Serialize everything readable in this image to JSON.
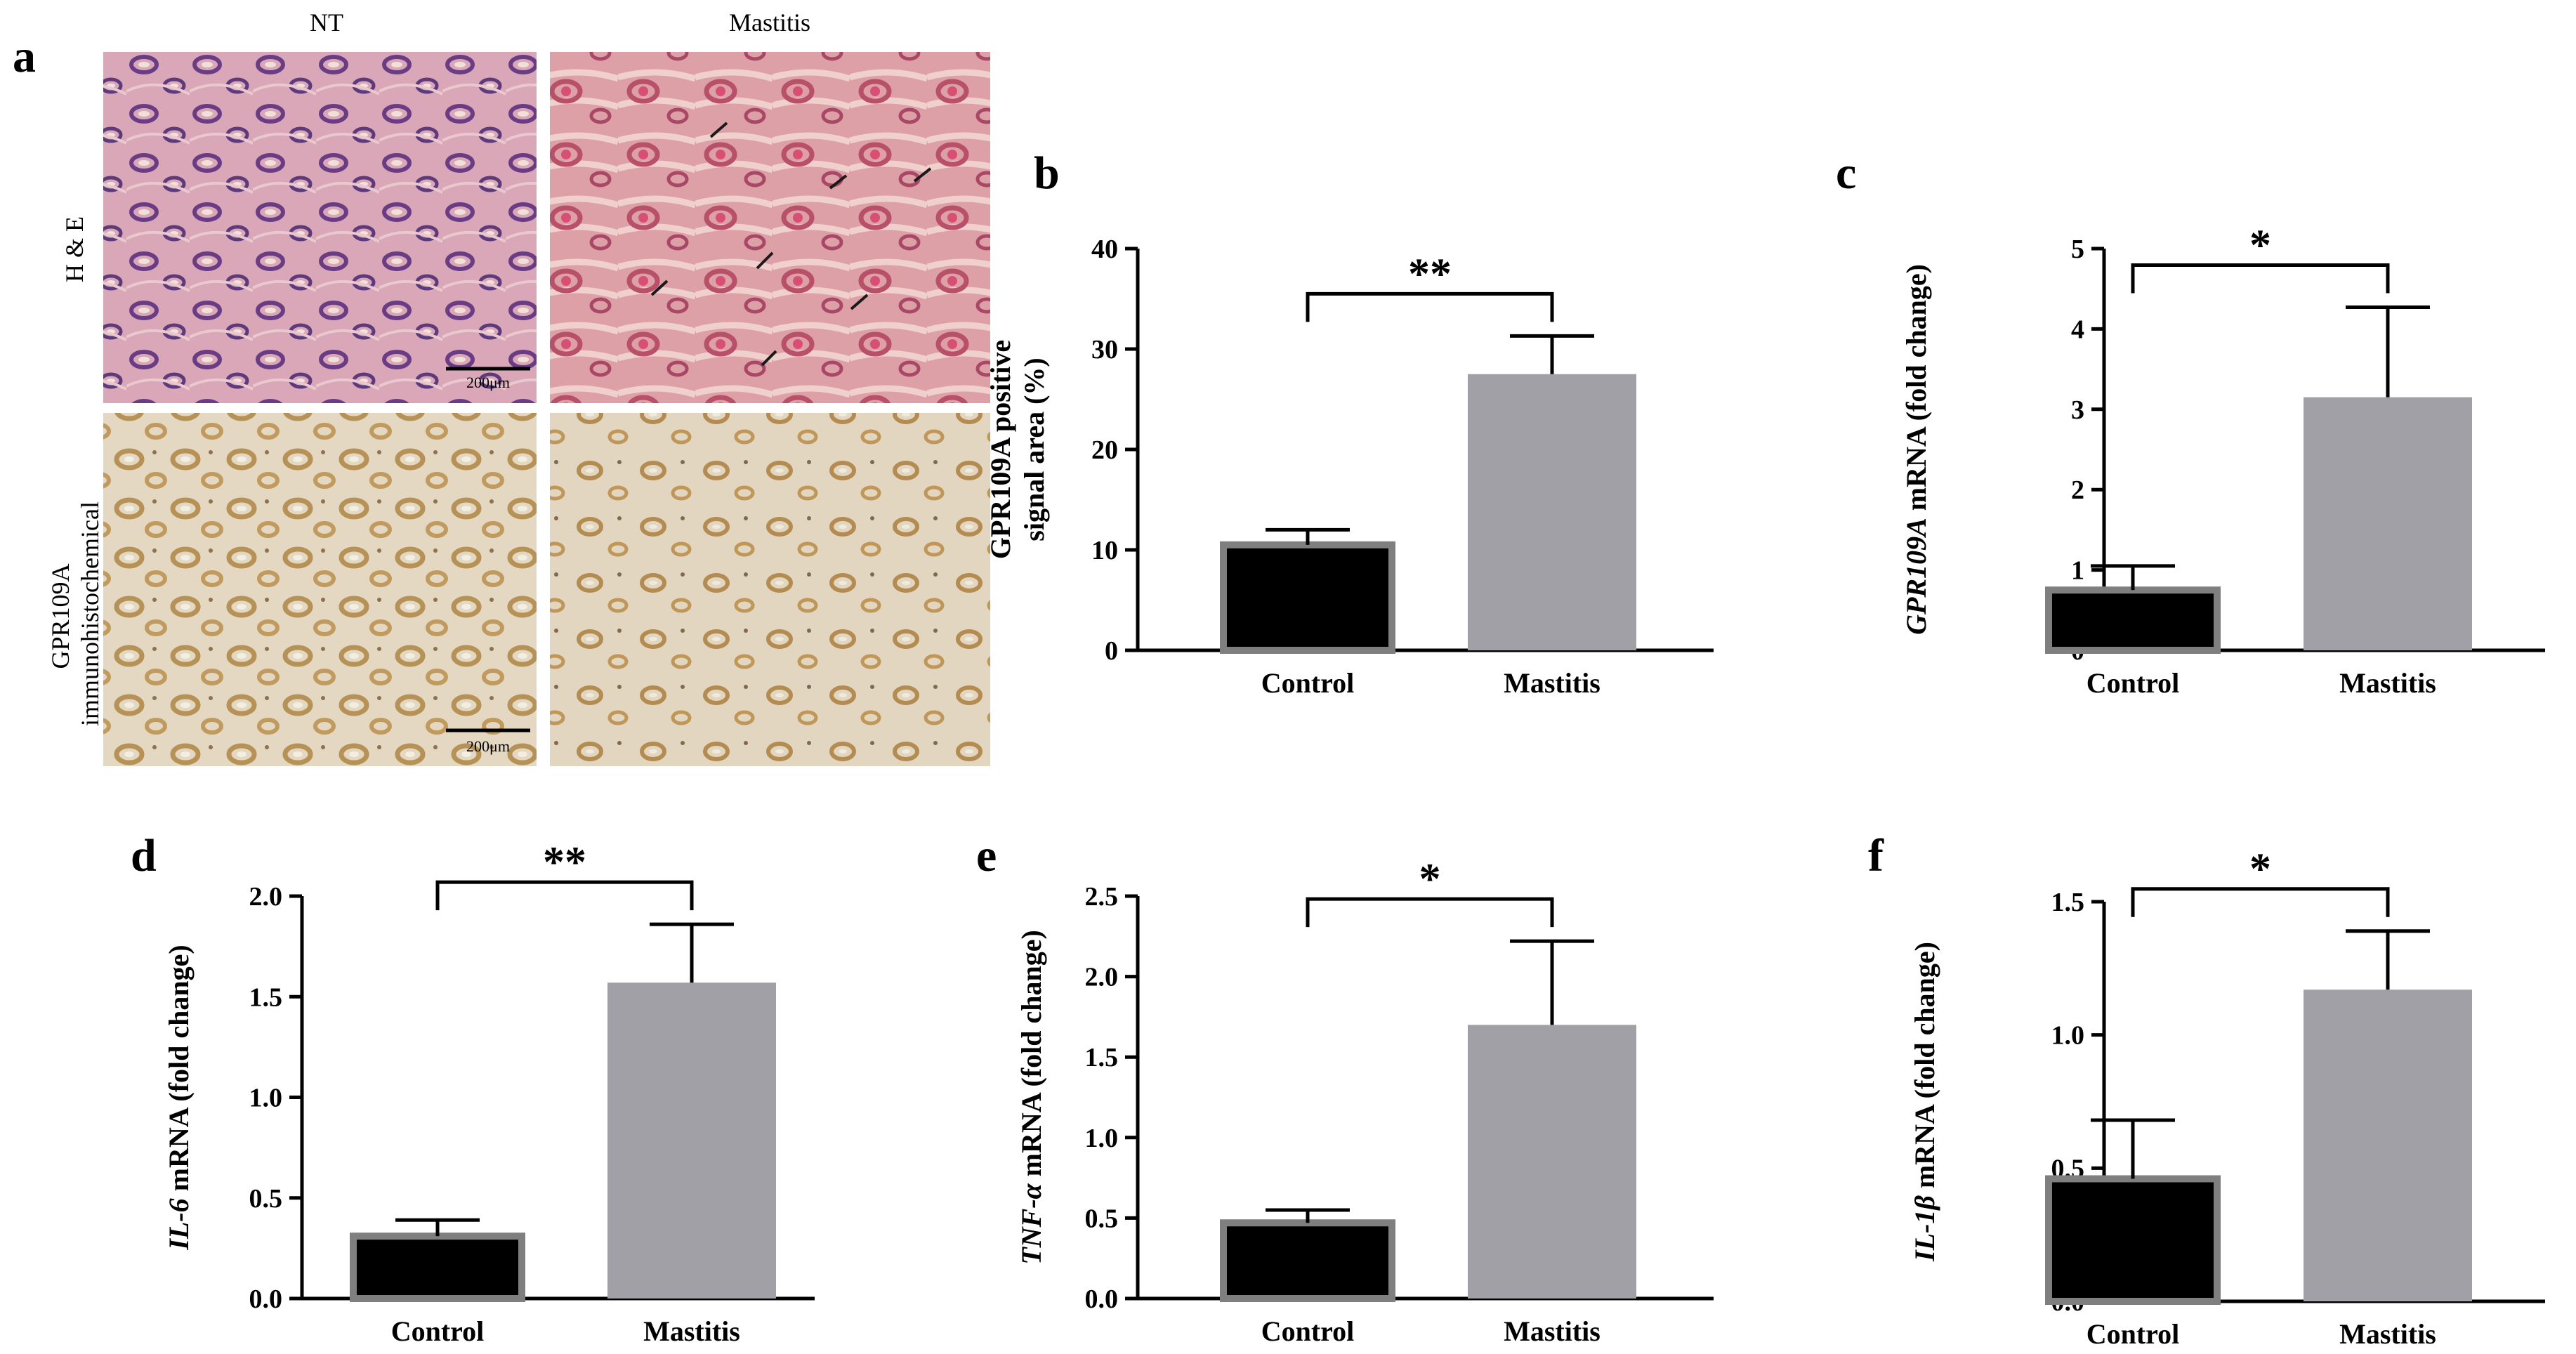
{
  "panel_a": {
    "label": "a",
    "columns": [
      "NT",
      "Mastitis"
    ],
    "rows": [
      "H & E",
      "GPR109A immunohistochemical"
    ],
    "row_lines": [
      [
        "H & E"
      ],
      [
        "GPR109A",
        "immunohistochemical"
      ]
    ],
    "scale_bars": [
      "200μm",
      "200μm"
    ]
  },
  "colors": {
    "control": "#000000",
    "control_edge": "#7f7f7f",
    "mastitis": "#a0a0a6",
    "axis": "#000000"
  },
  "chart_data": [
    {
      "panel": "b",
      "type": "bar",
      "categories": [
        "Control",
        "Mastitis"
      ],
      "values": [
        10.5,
        27.5
      ],
      "errors": [
        1.5,
        3.8
      ],
      "ylabel_lines": [
        "GPR109A positive",
        "signal area (%)"
      ],
      "ylabel_italic": "",
      "ylim": [
        0,
        40
      ],
      "yticks": [
        "0",
        "10",
        "20",
        "30",
        "40"
      ],
      "significance": "**"
    },
    {
      "panel": "c",
      "type": "bar",
      "categories": [
        "Control",
        "Mastitis"
      ],
      "values": [
        0.75,
        3.15
      ],
      "errors": [
        0.3,
        1.12
      ],
      "ylabel_lines": [
        " mRNA (fold change)"
      ],
      "ylabel_italic": "GPR109A",
      "ylim": [
        0,
        5
      ],
      "yticks": [
        "0",
        "1",
        "2",
        "3",
        "4",
        "5"
      ],
      "significance": "*"
    },
    {
      "panel": "d",
      "type": "bar",
      "categories": [
        "Control",
        "Mastitis"
      ],
      "values": [
        0.31,
        1.57
      ],
      "errors": [
        0.08,
        0.29
      ],
      "ylabel_lines": [
        " mRNA (fold change)"
      ],
      "ylabel_italic": "IL-6",
      "ylim": [
        0,
        2
      ],
      "yticks": [
        "0.0",
        "0.5",
        "1.0",
        "1.5",
        "2.0"
      ],
      "significance": "**"
    },
    {
      "panel": "e",
      "type": "bar",
      "categories": [
        "Control",
        "Mastitis"
      ],
      "values": [
        0.47,
        1.7
      ],
      "errors": [
        0.08,
        0.52
      ],
      "ylabel_lines": [
        " mRNA (fold change)"
      ],
      "ylabel_italic": "TNF-α",
      "ylim": [
        0,
        2.5
      ],
      "yticks": [
        "0.0",
        "0.5",
        "1.0",
        "1.5",
        "2.0",
        "2.5"
      ],
      "significance": "*"
    },
    {
      "panel": "f",
      "type": "bar",
      "categories": [
        "Control",
        "Mastitis"
      ],
      "values": [
        0.46,
        1.17
      ],
      "errors": [
        0.22,
        0.22
      ],
      "ylabel_lines": [
        " mRNA (fold change)"
      ],
      "ylabel_italic": "IL-1β",
      "ylim": [
        0,
        1.5
      ],
      "yticks": [
        "0.0",
        "0.5",
        "1.0",
        "1.5"
      ],
      "significance": "*"
    }
  ]
}
